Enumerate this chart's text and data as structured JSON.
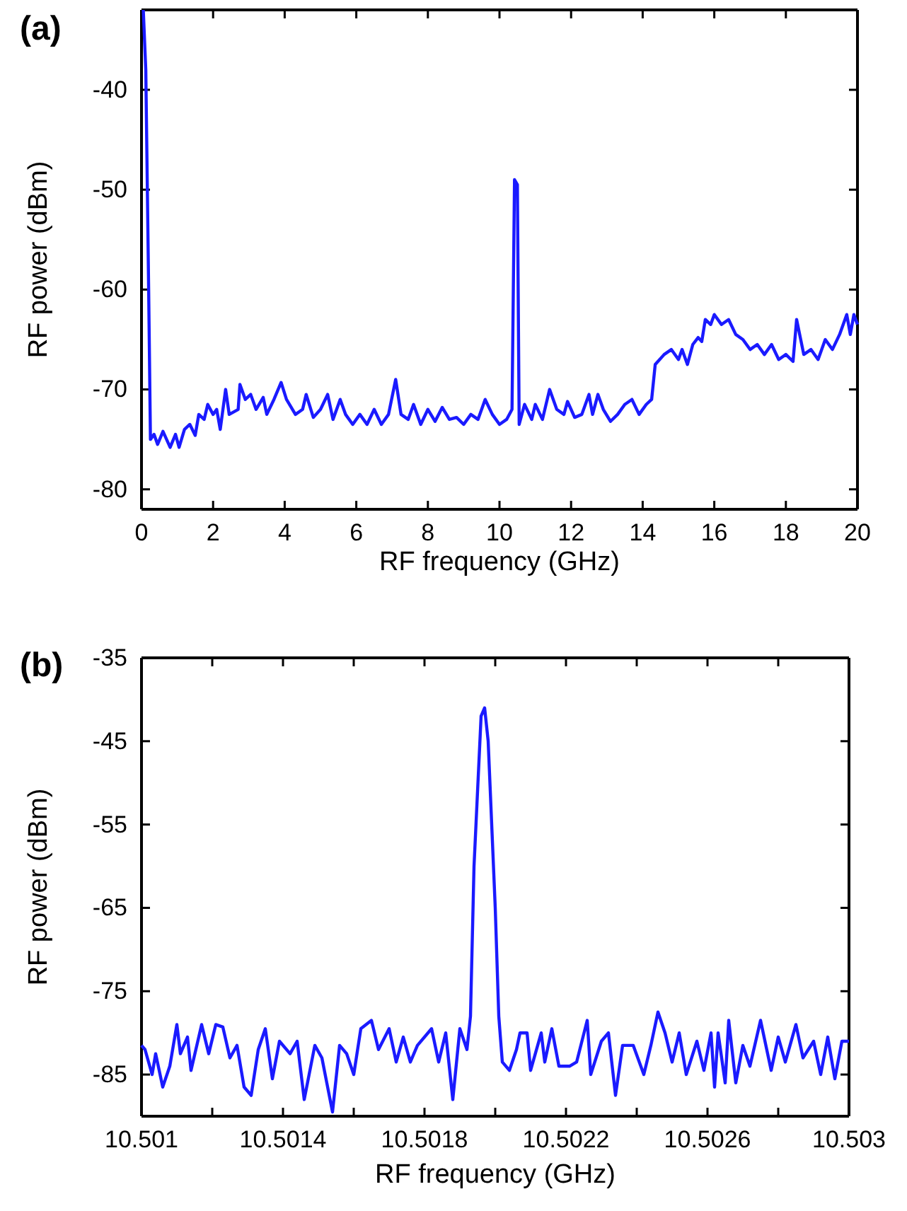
{
  "chart_data": [
    {
      "type": "line",
      "title": "(a)",
      "xlabel": "RF frequency (GHz)",
      "ylabel": "RF power (dBm)",
      "xlim": [
        0,
        20
      ],
      "ylim": [
        -82,
        -32
      ],
      "xticks": [
        0,
        2,
        4,
        6,
        8,
        10,
        12,
        14,
        16,
        18,
        20
      ],
      "yticks": [
        -80,
        -70,
        -60,
        -50,
        -40
      ],
      "grid": false,
      "marker": "none",
      "line_style": "solid",
      "series": [
        {
          "color": "#1a1aff",
          "x": [
            0.05,
            0.12,
            0.2,
            0.25,
            0.35,
            0.45,
            0.6,
            0.8,
            0.95,
            1.05,
            1.2,
            1.35,
            1.5,
            1.6,
            1.75,
            1.85,
            2.0,
            2.1,
            2.2,
            2.35,
            2.45,
            2.7,
            2.75,
            2.9,
            3.05,
            3.2,
            3.4,
            3.5,
            3.7,
            3.9,
            4.05,
            4.3,
            4.5,
            4.6,
            4.8,
            5.0,
            5.2,
            5.35,
            5.55,
            5.7,
            5.9,
            6.1,
            6.3,
            6.5,
            6.7,
            6.9,
            7.1,
            7.25,
            7.45,
            7.6,
            7.8,
            8.0,
            8.2,
            8.4,
            8.6,
            8.8,
            9.0,
            9.2,
            9.4,
            9.6,
            9.8,
            10.0,
            10.2,
            10.35,
            10.42,
            10.5,
            10.55,
            10.7,
            10.9,
            11.0,
            11.2,
            11.4,
            11.6,
            11.8,
            11.9,
            12.1,
            12.3,
            12.5,
            12.6,
            12.75,
            12.9,
            13.1,
            13.3,
            13.5,
            13.7,
            13.9,
            14.1,
            14.25,
            14.35,
            14.6,
            14.8,
            15.0,
            15.1,
            15.25,
            15.4,
            15.55,
            15.65,
            15.75,
            15.9,
            16.0,
            16.2,
            16.4,
            16.6,
            16.8,
            17.0,
            17.2,
            17.4,
            17.6,
            17.8,
            18.0,
            18.2,
            18.3,
            18.5,
            18.7,
            18.9,
            19.1,
            19.3,
            19.5,
            19.7,
            19.8,
            19.9,
            20
          ],
          "values": [
            -32,
            -38,
            -60,
            -75,
            -74.5,
            -75.5,
            -74.2,
            -75.8,
            -74.5,
            -75.8,
            -74,
            -73.5,
            -74.6,
            -72.5,
            -73,
            -71.5,
            -72.5,
            -72,
            -74,
            -70,
            -72.5,
            -72,
            -69.5,
            -71,
            -70.5,
            -72,
            -70.8,
            -72.5,
            -71,
            -69.3,
            -71,
            -72.5,
            -72,
            -70.5,
            -72.8,
            -72,
            -70.5,
            -73,
            -71,
            -72.5,
            -73.5,
            -72.5,
            -73.5,
            -72,
            -73.5,
            -72.5,
            -69,
            -72.5,
            -73,
            -71.5,
            -73.5,
            -72,
            -73.2,
            -71.8,
            -73,
            -72.8,
            -73.5,
            -72.5,
            -73,
            -71,
            -72.5,
            -73.5,
            -73,
            -72,
            -49,
            -49.5,
            -73.5,
            -71.5,
            -73,
            -71.5,
            -73,
            -70,
            -72,
            -72.5,
            -71.2,
            -72.8,
            -72.5,
            -70.5,
            -72.5,
            -70.5,
            -72,
            -73.2,
            -72.5,
            -71.5,
            -71,
            -72.5,
            -71.5,
            -71,
            -67.5,
            -66.5,
            -66,
            -67,
            -66,
            -67.5,
            -65.5,
            -64.8,
            -65.2,
            -63,
            -63.5,
            -62.5,
            -63.5,
            -63,
            -64.5,
            -65,
            -66,
            -65.5,
            -66.5,
            -65.5,
            -67,
            -66.5,
            -67.2,
            -63,
            -66.5,
            -66,
            -67,
            -65,
            -66,
            -64.5,
            -62.5,
            -64.5,
            -62.5,
            -63.5
          ]
        }
      ]
    },
    {
      "type": "line",
      "title": "(b)",
      "xlabel": "RF frequency (GHz)",
      "ylabel": "RF power (dBm)",
      "xlim": [
        10.501,
        10.503
      ],
      "ylim": [
        -90,
        -35
      ],
      "xticks": [
        10.501,
        {
          "value": 10.5012,
          "label": null
        },
        10.5014,
        {
          "value": 10.5016,
          "label": null
        },
        10.5018,
        {
          "value": 10.502,
          "label": null
        },
        10.5022,
        {
          "value": 10.5024,
          "label": null
        },
        10.5026,
        {
          "value": 10.5028,
          "label": null
        },
        10.503
      ],
      "yticks": [
        -85,
        -75,
        -65,
        -55,
        -45,
        -35
      ],
      "grid": false,
      "marker": "none",
      "line_style": "solid",
      "series": [
        {
          "color": "#1a1aff",
          "x": [
            10.501,
            10.50101,
            10.50103,
            10.50104,
            10.50106,
            10.50108,
            10.5011,
            10.50111,
            10.50113,
            10.50114,
            10.50117,
            10.50119,
            10.50121,
            10.50123,
            10.50125,
            10.50127,
            10.50129,
            10.50131,
            10.50133,
            10.50135,
            10.50137,
            10.50139,
            10.50142,
            10.50144,
            10.50146,
            10.50149,
            10.50151,
            10.50154,
            10.50156,
            10.50158,
            10.5016,
            10.50162,
            10.50165,
            10.50167,
            10.5017,
            10.50172,
            10.50174,
            10.50176,
            10.50178,
            10.50182,
            10.50184,
            10.50186,
            10.50188,
            10.5019,
            10.50192,
            10.50193,
            10.50194,
            10.50196,
            10.50197,
            10.50198,
            10.502,
            10.50201,
            10.50202,
            10.50204,
            10.50206,
            10.50207,
            10.50209,
            10.5021,
            10.50213,
            10.50214,
            10.50216,
            10.50218,
            10.50221,
            10.50223,
            10.50226,
            10.50227,
            10.5023,
            10.50232,
            10.50234,
            10.50236,
            10.50239,
            10.50242,
            10.50244,
            10.50246,
            10.50248,
            10.5025,
            10.50252,
            10.50254,
            10.50257,
            10.50259,
            10.50261,
            10.50262,
            10.50263,
            10.50265,
            10.50266,
            10.50268,
            10.5027,
            10.50272,
            10.50275,
            10.50278,
            10.5028,
            10.50282,
            10.50285,
            10.50287,
            10.5029,
            10.50292,
            10.50294,
            10.50296,
            10.50298,
            10.503
          ],
          "values": [
            -81.5,
            -82,
            -85,
            -82.5,
            -86.5,
            -84,
            -79,
            -82.5,
            -80.5,
            -84.5,
            -79,
            -82.5,
            -79,
            -79.3,
            -83,
            -81.5,
            -86.5,
            -87.5,
            -82,
            -79.5,
            -85.5,
            -81,
            -82.5,
            -81,
            -88,
            -81.5,
            -83,
            -89.5,
            -81.5,
            -82.5,
            -85,
            -79.5,
            -78.5,
            -82,
            -79.5,
            -83.5,
            -80.5,
            -83.5,
            -81.5,
            -79.5,
            -83.5,
            -80,
            -88,
            -79.5,
            -82,
            -78,
            -60,
            -42,
            -41,
            -45,
            -65,
            -78,
            -83.5,
            -84.5,
            -82,
            -80,
            -80,
            -84.5,
            -80,
            -83.5,
            -79.5,
            -84,
            -84,
            -83.5,
            -78.5,
            -85,
            -81,
            -80,
            -87.5,
            -81.5,
            -81.5,
            -85,
            -81.5,
            -77.5,
            -80,
            -83.5,
            -80,
            -85,
            -81,
            -84.5,
            -80,
            -86.5,
            -80,
            -86,
            -78.5,
            -86,
            -81.5,
            -84,
            -78.5,
            -84.5,
            -80.5,
            -83.5,
            -79,
            -83,
            -81,
            -85,
            -80.5,
            -85.5,
            -81,
            -81
          ]
        }
      ]
    }
  ]
}
